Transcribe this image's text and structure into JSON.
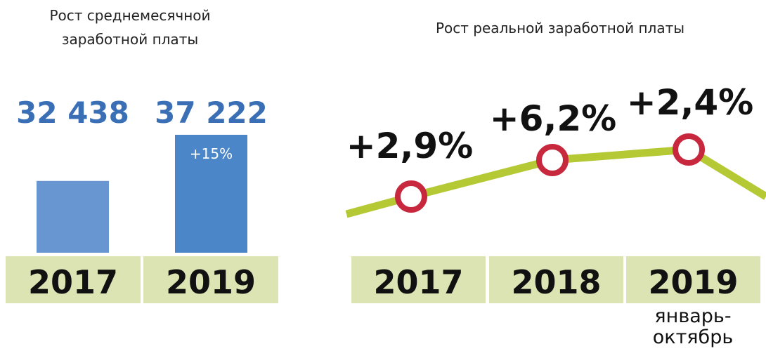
{
  "chart_data": [
    {
      "type": "bar",
      "title_lines": [
        "Рост среднемесячной",
        "заработной платы"
      ],
      "categories": [
        "2017",
        "2019"
      ],
      "values": [
        32438,
        37222
      ],
      "value_labels": [
        "32 438",
        "37 222"
      ],
      "bar_annotation": {
        "index": 1,
        "text": "+15%"
      },
      "colors": {
        "bars": [
          "#6896d0",
          "#4a86c8"
        ],
        "value_text": "#3a6fb5",
        "category_band": "#dde4b4",
        "annotation_text": "#ffffff"
      }
    },
    {
      "type": "line",
      "title": "Рост реальной заработной платы",
      "categories": [
        "2017",
        "2018",
        "2019"
      ],
      "category_sublabels": [
        "",
        "",
        "январь-\nоктябрь"
      ],
      "values": [
        2.9,
        6.2,
        2.4
      ],
      "value_labels": [
        "+2,9%",
        "+6,2%",
        "+2,4%"
      ],
      "colors": {
        "line": "#b5c934",
        "marker_stroke": "#c8283e",
        "marker_fill": "#ffffff",
        "category_band": "#dde4b4",
        "label_text": "#111111"
      }
    }
  ]
}
